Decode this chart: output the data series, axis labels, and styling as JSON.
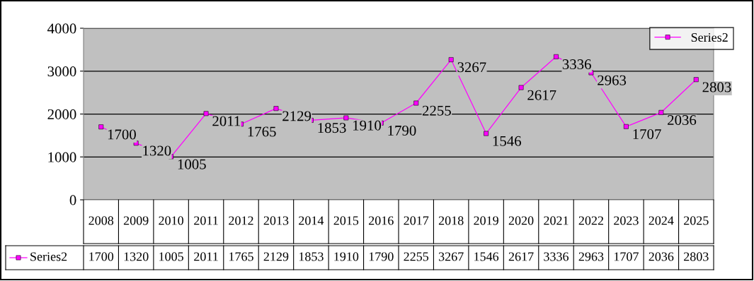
{
  "chart_data": {
    "type": "line",
    "categories": [
      "2008",
      "2009",
      "2010",
      "2011",
      "2012",
      "2013",
      "2014",
      "2015",
      "2016",
      "2017",
      "2018",
      "2019",
      "2020",
      "2021",
      "2022",
      "2023",
      "2024",
      "2025"
    ],
    "series": [
      {
        "name": "Series2",
        "color": "#ff00ff",
        "values": [
          1700,
          1320,
          1005,
          2011,
          1765,
          2129,
          1853,
          1910,
          1790,
          2255,
          3267,
          1546,
          2617,
          3336,
          2963,
          1707,
          2036,
          2803
        ]
      }
    ],
    "ylim": [
      0,
      4000
    ],
    "yticks": [
      0,
      1000,
      2000,
      3000,
      4000
    ],
    "grid": "y",
    "legend": "top right",
    "marker": "square",
    "data_labels": true,
    "annotations": [
      "1700",
      "1320",
      "1005",
      "2011",
      "1765",
      "2129",
      "1853",
      "1910",
      "1790",
      "2255",
      "3267",
      "1546",
      "2617",
      "3336",
      "2963",
      "1707",
      "2036",
      "2803"
    ]
  }
}
